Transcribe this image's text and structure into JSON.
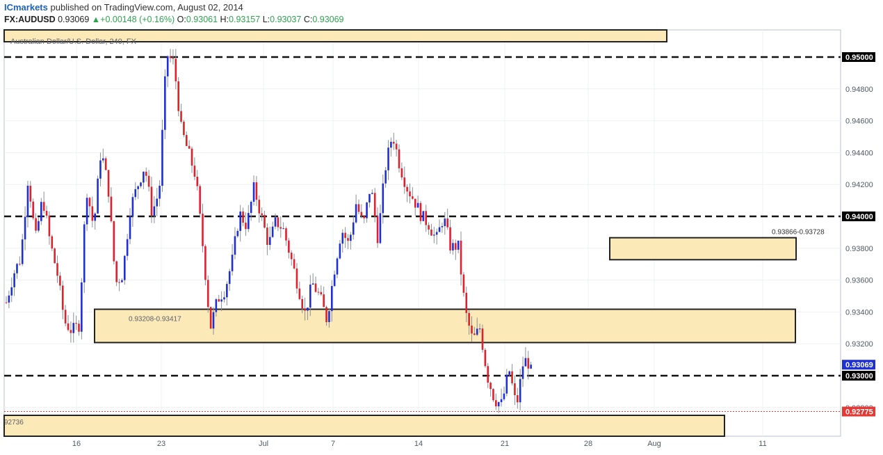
{
  "header": {
    "brand": "ICmarkets",
    "published_text": "published on TradingView.com, August 02, 2014",
    "symbol": "FX:AUDUSD",
    "last": "0.93069",
    "change_arrow": "▲",
    "change": "+0.00148 (+0.16%)",
    "o_label": "O:",
    "o_value": "0.93061",
    "h_label": "H:",
    "h_value": "0.93157",
    "l_label": "L:",
    "l_value": "0.93037",
    "c_label": "C:",
    "c_value": "0.93069"
  },
  "chart_data": {
    "type": "candlestick",
    "title": "Australian Dollar/U.S. Dollar, 240, FX",
    "y_range": [
      0.9262,
      0.9541
    ],
    "y_ticks": [
      0.948,
      0.946,
      0.944,
      0.942,
      0.938,
      0.936,
      0.934,
      0.932,
      0.928
    ],
    "y_tick_labels": [
      "0.94800",
      "0.94600",
      "0.94400",
      "0.94200",
      "0.93800",
      "0.93600",
      "0.93400",
      "0.93200",
      "0.92800"
    ],
    "x_tick_labels": [
      "16",
      "23",
      "Jul",
      "7",
      "14",
      "21",
      "28",
      "Aug",
      "11"
    ],
    "price_tags": [
      {
        "label": "0.95000",
        "value": 0.95,
        "style": "level"
      },
      {
        "label": "0.94000",
        "value": 0.94,
        "style": "level"
      },
      {
        "label": "0.93069",
        "value": 0.93069,
        "style": "last"
      },
      {
        "label": "0.93000",
        "value": 0.93,
        "style": "level"
      },
      {
        "label": "0.92775",
        "value": 0.92775,
        "style": "stop"
      }
    ],
    "levels": [
      0.95,
      0.94,
      0.93
    ],
    "dotted_level": 0.92775,
    "zones": [
      {
        "from": 0.93208,
        "to": 0.93417,
        "label": "0.93208-0.93417"
      },
      {
        "from": 0.93728,
        "to": 0.93866,
        "label": "0.93866-0.93728"
      },
      {
        "from": null,
        "to": null,
        "label": "92736"
      },
      {
        "from": null,
        "to": null,
        "label": ""
      }
    ],
    "anchors": [
      0.9346,
      0.9364,
      0.9374,
      0.9425,
      0.9385,
      0.9412,
      0.9384,
      0.9364,
      0.9334,
      0.9328,
      0.9332,
      0.9418,
      0.9393,
      0.9442,
      0.9418,
      0.9358,
      0.9364,
      0.9405,
      0.9419,
      0.9432,
      0.9402,
      0.9416,
      0.9502,
      0.9496,
      0.9455,
      0.944,
      0.9425,
      0.938,
      0.933,
      0.9348,
      0.9354,
      0.9372,
      0.9402,
      0.9394,
      0.9418,
      0.94,
      0.9382,
      0.9397,
      0.9392,
      0.9375,
      0.9357,
      0.9339,
      0.9358,
      0.935,
      0.9335,
      0.9366,
      0.9392,
      0.9382,
      0.9408,
      0.9394,
      0.942,
      0.9386,
      0.943,
      0.9452,
      0.9432,
      0.9418,
      0.941,
      0.94,
      0.9395,
      0.9385,
      0.94,
      0.938,
      0.9382,
      0.934,
      0.9322,
      0.933,
      0.93,
      0.9285,
      0.9282,
      0.9304,
      0.928,
      0.931,
      0.9307
    ]
  }
}
